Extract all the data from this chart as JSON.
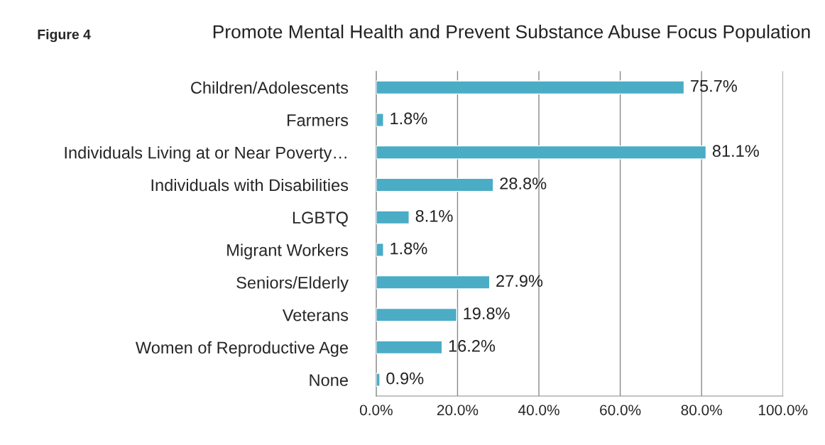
{
  "chart_data": {
    "type": "bar",
    "orientation": "horizontal",
    "title": "Promote Mental Health and Prevent Substance Abuse Focus Population",
    "annotations": [
      "Figure 4"
    ],
    "categories": [
      "Children/Adolescents",
      "Farmers",
      "Individuals Living at or Near Poverty…",
      "Individuals with Disabilities",
      "LGBTQ",
      "Migrant Workers",
      "Seniors/Elderly",
      "Veterans",
      "Women of Reproductive Age",
      "None"
    ],
    "values": [
      75.7,
      1.8,
      81.1,
      28.8,
      8.1,
      1.8,
      27.9,
      19.8,
      16.2,
      0.9
    ],
    "value_labels": [
      "75.7%",
      "1.8%",
      "81.1%",
      "28.8%",
      "8.1%",
      "1.8%",
      "27.9%",
      "19.8%",
      "16.2%",
      "0.9%"
    ],
    "color": "#4bacc6",
    "xlim": [
      0,
      100
    ],
    "xticks": [
      {
        "value": 0,
        "label": "0.0%"
      },
      {
        "value": 20,
        "label": "20.0%"
      },
      {
        "value": 40,
        "label": "40.0%"
      },
      {
        "value": 60,
        "label": "60.0%"
      },
      {
        "value": 80,
        "label": "80.0%"
      },
      {
        "value": 100,
        "label": "100.0%"
      }
    ],
    "grid": "x"
  }
}
